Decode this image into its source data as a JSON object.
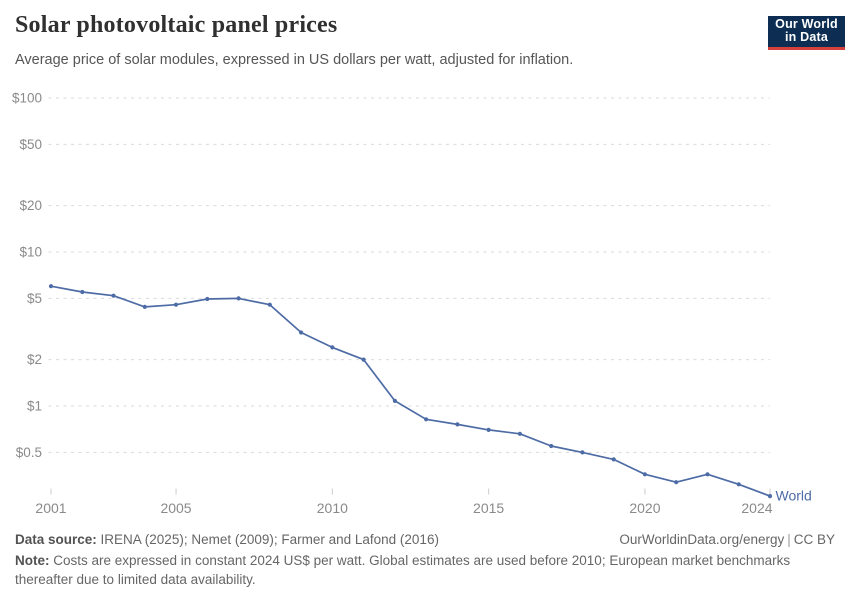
{
  "header": {
    "title": "Solar photovoltaic panel prices",
    "subtitle": "Average price of solar modules, expressed in US dollars per watt, adjusted for inflation.",
    "logo": {
      "line1": "Our World",
      "line2": "in Data",
      "bg_color": "#0d2e52",
      "bar_color": "#d6403a"
    }
  },
  "chart_data": {
    "type": "line",
    "title": "Solar photovoltaic panel prices",
    "xlabel": "",
    "ylabel": "US dollars per watt",
    "yscale": "log",
    "grid": "dashed",
    "grid_color": "#dadada",
    "axis_text_color": "#8a8a8a",
    "ylim": [
      0.25,
      100
    ],
    "xlim": [
      2001,
      2024
    ],
    "yticks": [
      0.5,
      1,
      2,
      5,
      10,
      20,
      50,
      100
    ],
    "ytick_labels": [
      "$0.5",
      "$1",
      "$2",
      "$5",
      "$10",
      "$20",
      "$50",
      "$100"
    ],
    "xticks": [
      2001,
      2005,
      2010,
      2015,
      2020,
      2024
    ],
    "series": [
      {
        "name": "World",
        "color": "#4d6ba5",
        "x": [
          2001,
          2002,
          2003,
          2004,
          2005,
          2006,
          2007,
          2008,
          2009,
          2010,
          2011,
          2012,
          2013,
          2014,
          2015,
          2016,
          2017,
          2018,
          2019,
          2020,
          2021,
          2022,
          2023,
          2024
        ],
        "values": [
          6.0,
          5.5,
          5.2,
          4.4,
          4.55,
          4.95,
          5.0,
          4.55,
          3.0,
          2.4,
          2.0,
          1.08,
          0.82,
          0.76,
          0.7,
          0.66,
          0.55,
          0.5,
          0.45,
          0.36,
          0.32,
          0.36,
          0.31,
          0.26
        ]
      }
    ],
    "end_label": "World"
  },
  "footer": {
    "datasource_label": "Data source:",
    "datasource_text": " IRENA (2025); Nemet (2009); Farmer and Lafond (2016)",
    "link_text": "OurWorldinData.org/energy",
    "separator": "|",
    "license_text": "CC BY",
    "note_label": "Note:",
    "note_text": " Costs are expressed in constant 2024 US$ per watt. Global estimates are used before 2010; European market benchmarks thereafter due to limited data availability."
  }
}
